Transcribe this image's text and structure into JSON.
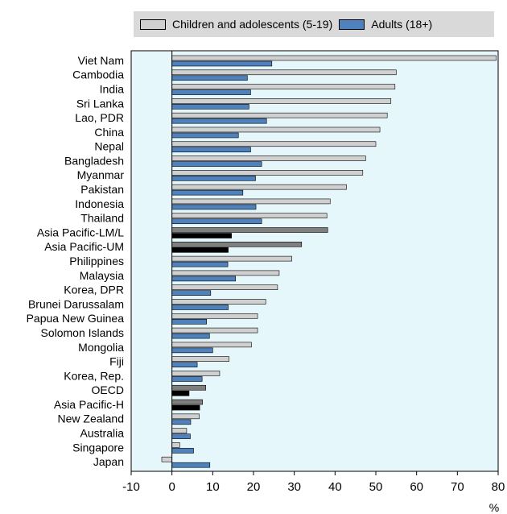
{
  "chart_data": {
    "type": "bar",
    "orientation": "horizontal",
    "legend": {
      "position": "top"
    },
    "xlabel": "%",
    "xlim": [
      -10,
      80
    ],
    "x_ticks": [
      "-10",
      "0",
      "10",
      "20",
      "30",
      "40",
      "50",
      "60",
      "70",
      "80"
    ],
    "grid": false,
    "categories": [
      "Viet Nam",
      "Cambodia",
      "India",
      "Sri Lanka",
      "Lao, PDR",
      "China",
      "Nepal",
      "Bangladesh",
      "Myanmar",
      "Pakistan",
      "Indonesia",
      "Thailand",
      "Asia Pacific-LM/L",
      "Asia Pacific-UM",
      "Philippines",
      "Malaysia",
      "Korea, DPR",
      "Brunei Darussalam",
      "Papua New Guinea",
      "Solomon Islands",
      "Mongolia",
      "Fiji",
      "Korea, Rep.",
      "OECD",
      "Asia Pacific-H",
      "New Zealand",
      "Australia",
      "Singapore",
      "Japan"
    ],
    "highlighted_categories": [
      "Asia Pacific-LM/L",
      "Asia Pacific-UM",
      "OECD",
      "Asia Pacific-H"
    ],
    "series": [
      {
        "name": "Children and adolescents (5-19)",
        "color": "#d0d0d0",
        "highlight_color": "#7f7f7f",
        "values": [
          79.5,
          55,
          54.7,
          53.7,
          52.8,
          51,
          50,
          47.5,
          46.8,
          42.8,
          38.8,
          38,
          38.2,
          31.8,
          29.4,
          26.3,
          25.9,
          23,
          21,
          21,
          19.5,
          14,
          11.7,
          8.3,
          7.5,
          6.7,
          3.6,
          1.9,
          -2.5
        ]
      },
      {
        "name": "Adults (18+)",
        "color": "#4f81bd",
        "highlight_color": "#000000",
        "values": [
          24.5,
          18.5,
          19.3,
          18.9,
          23.2,
          16.3,
          19.3,
          22,
          20.5,
          17.4,
          20.6,
          22,
          14.6,
          13.8,
          13.7,
          15.6,
          9.5,
          13.8,
          8.5,
          9.2,
          10,
          6.2,
          7.4,
          4.2,
          6.8,
          4.6,
          4.5,
          5.3,
          9.3
        ]
      }
    ]
  }
}
